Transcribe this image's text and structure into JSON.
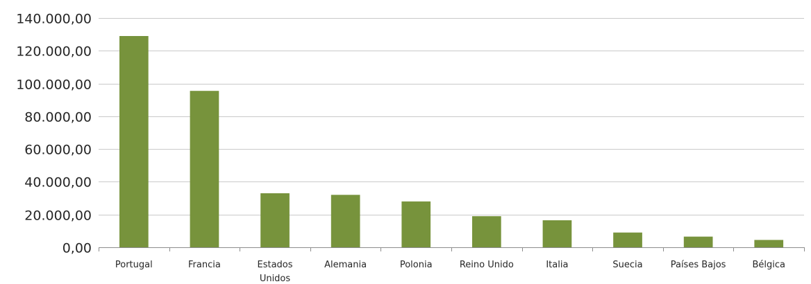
{
  "chart_data": {
    "type": "bar",
    "title": "",
    "xlabel": "",
    "ylabel": "",
    "categories": [
      "Portugal",
      "Francia",
      "Estados Unidos",
      "Alemania",
      "Polonia",
      "Reino Unido",
      "Italia",
      "Suecia",
      "Países Bajos",
      "Bélgica"
    ],
    "series": [
      {
        "values": [
          129000,
          95500,
          33000,
          32000,
          28000,
          19000,
          16500,
          9000,
          6500,
          4500
        ],
        "color": "#77933c"
      }
    ],
    "ylim": [
      0,
      140000
    ],
    "yticks": [
      0,
      20000,
      40000,
      60000,
      80000,
      100000,
      120000,
      140000
    ],
    "ytick_labels": [
      "0,00",
      "20.000,00",
      "40.000,00",
      "60.000,00",
      "80.000,00",
      "100.000,00",
      "120.000,00",
      "140.000,00"
    ],
    "grid": true,
    "legend": "none"
  }
}
